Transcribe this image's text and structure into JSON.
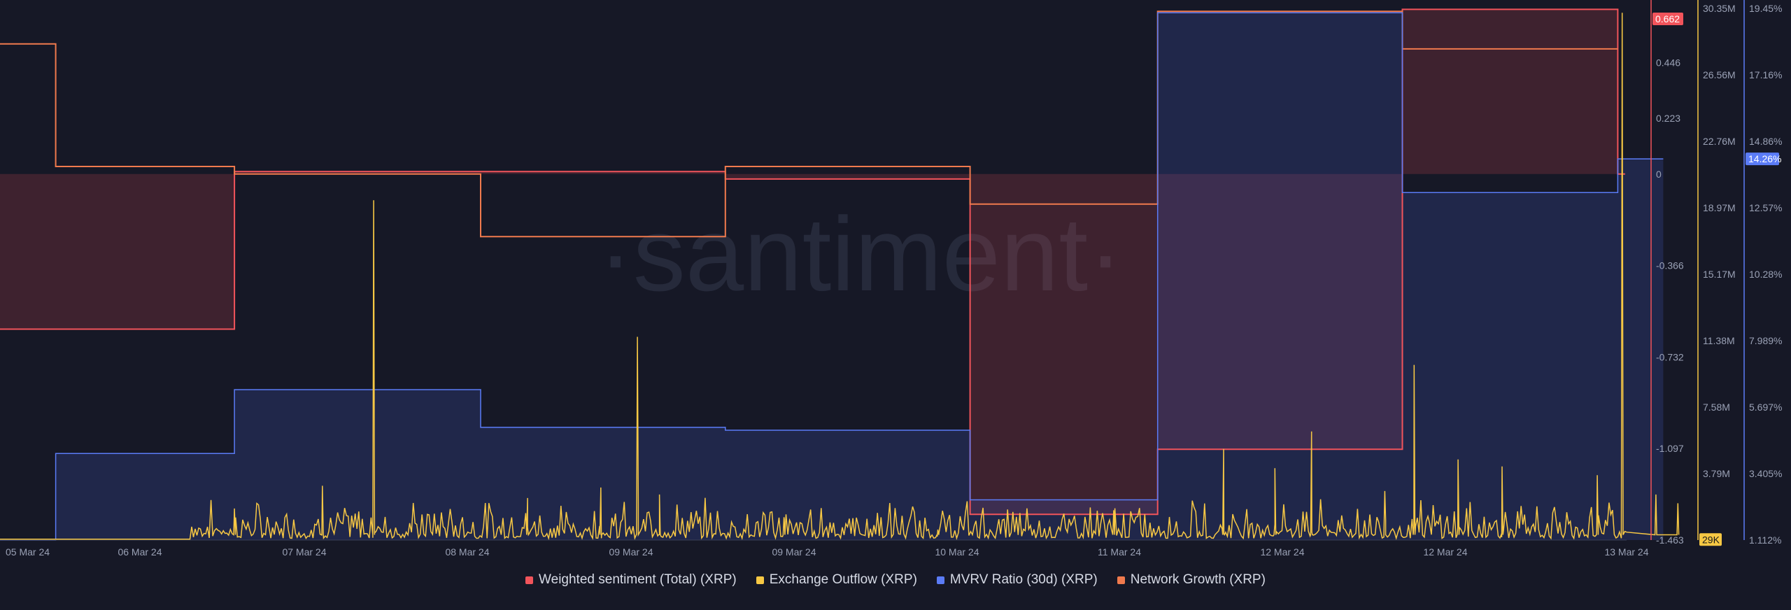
{
  "watermark": "·santiment·",
  "chart_data": {
    "type": "line",
    "x_ticks": [
      "05 Mar 24",
      "06 Mar 24",
      "07 Mar 24",
      "08 Mar 24",
      "09 Mar 24",
      "09 Mar 24",
      "10 Mar 24",
      "11 Mar 24",
      "12 Mar 24",
      "12 Mar 24",
      "13 Mar 24"
    ],
    "axes": {
      "sentiment": {
        "ticks": [
          "0.446",
          "0.223",
          "0",
          "-0.366",
          "-0.732",
          "-1.097",
          "-1.463"
        ],
        "range": [
          -1.463,
          0.662
        ],
        "current": "0.662",
        "color": "#f2545b"
      },
      "outflow": {
        "ticks": [
          "30.35M",
          "26.56M",
          "22.76M",
          "18.97M",
          "15.17M",
          "11.38M",
          "7.58M",
          "3.79M"
        ],
        "range": [
          0,
          30350000
        ],
        "current": "29K",
        "color": "#f7c844"
      },
      "mvrv": {
        "ticks": [
          "19.45%",
          "17.16%",
          "14.86%",
          "12.57%",
          "10.28%",
          "7.989%",
          "5.697%",
          "3.405%",
          "1.112%"
        ],
        "range": [
          1.112,
          19.45
        ],
        "current": "14.26%",
        "color": "#5b7cf7"
      }
    },
    "series": [
      {
        "name": "Weighted sentiment (Total) (XRP)",
        "color": "#f2545b",
        "axis": "sentiment",
        "points": [
          [
            0,
            -0.62
          ],
          [
            1.6,
            -0.62
          ],
          [
            1.6,
            0.01
          ],
          [
            3.58,
            0.01
          ],
          [
            3.58,
            0.01
          ],
          [
            4.95,
            0.01
          ],
          [
            4.95,
            -0.02
          ],
          [
            6.62,
            -0.02
          ],
          [
            6.62,
            -1.36
          ],
          [
            7.9,
            -1.36
          ],
          [
            7.9,
            -1.1
          ],
          [
            9.57,
            -1.1
          ],
          [
            9.57,
            0.658
          ],
          [
            11.04,
            0.658
          ],
          [
            11.04,
            0.0
          ],
          [
            11.09,
            0.0
          ]
        ]
      },
      {
        "name": "Network Growth (XRP)",
        "color": "#f07a4d",
        "axis": "sentiment",
        "points": [
          [
            0,
            0.52
          ],
          [
            0.38,
            0.52
          ],
          [
            0.38,
            0.03
          ],
          [
            1.6,
            0.03
          ],
          [
            1.6,
            0.0
          ],
          [
            3.28,
            0.0
          ],
          [
            3.28,
            -0.25
          ],
          [
            4.95,
            -0.25
          ],
          [
            4.95,
            0.03
          ],
          [
            6.62,
            0.03
          ],
          [
            6.62,
            -0.12
          ],
          [
            7.9,
            -0.12
          ],
          [
            7.9,
            0.65
          ],
          [
            9.57,
            0.65
          ],
          [
            9.57,
            0.5
          ],
          [
            11.04,
            0.5
          ]
        ]
      },
      {
        "name": "MVRV Ratio (30d) (XRP)",
        "color": "#5b7cf7",
        "axis": "mvrv",
        "points": [
          [
            0,
            1.112
          ],
          [
            0.38,
            1.112
          ],
          [
            0.38,
            4.1
          ],
          [
            1.6,
            4.1
          ],
          [
            1.6,
            6.3
          ],
          [
            3.28,
            6.3
          ],
          [
            3.28,
            5.0
          ],
          [
            4.95,
            5.0
          ],
          [
            4.95,
            4.9
          ],
          [
            6.62,
            4.9
          ],
          [
            6.62,
            2.5
          ],
          [
            7.9,
            2.5
          ],
          [
            7.9,
            19.3
          ],
          [
            9.57,
            19.3
          ],
          [
            9.57,
            13.1
          ],
          [
            11.04,
            13.1
          ],
          [
            11.04,
            14.26
          ],
          [
            11.35,
            14.26
          ]
        ]
      },
      {
        "name": "Exchange Outflow (XRP)",
        "color": "#f7c844",
        "axis": "outflow",
        "spikes": [
          [
            1.6,
            1.8
          ],
          [
            2.2,
            3.1
          ],
          [
            2.55,
            19.4
          ],
          [
            3.6,
            2.4
          ],
          [
            4.1,
            3.0
          ],
          [
            4.35,
            11.6
          ],
          [
            4.5,
            2.6
          ],
          [
            5.35,
            1.3
          ],
          [
            6.4,
            0.6
          ],
          [
            7.6,
            1.7
          ],
          [
            8.35,
            5.2
          ],
          [
            8.7,
            4.1
          ],
          [
            8.95,
            6.2
          ],
          [
            9.45,
            2.8
          ],
          [
            9.65,
            10.0
          ],
          [
            9.95,
            4.6
          ],
          [
            10.25,
            4.2
          ],
          [
            10.9,
            3.7
          ],
          [
            11.07,
            30.1
          ],
          [
            11.3,
            2.6
          ],
          [
            11.45,
            2.1
          ]
        ]
      }
    ],
    "x_range": [
      0,
      11.1
    ],
    "grid": false,
    "legend": "bottom-center"
  },
  "legend": [
    {
      "label": "Weighted sentiment (Total) (XRP)",
      "color": "#f2545b"
    },
    {
      "label": "Exchange Outflow (XRP)",
      "color": "#f7c844"
    },
    {
      "label": "MVRV Ratio (30d) (XRP)",
      "color": "#5b7cf7"
    },
    {
      "label": "Network Growth (XRP)",
      "color": "#f07a4d"
    }
  ]
}
